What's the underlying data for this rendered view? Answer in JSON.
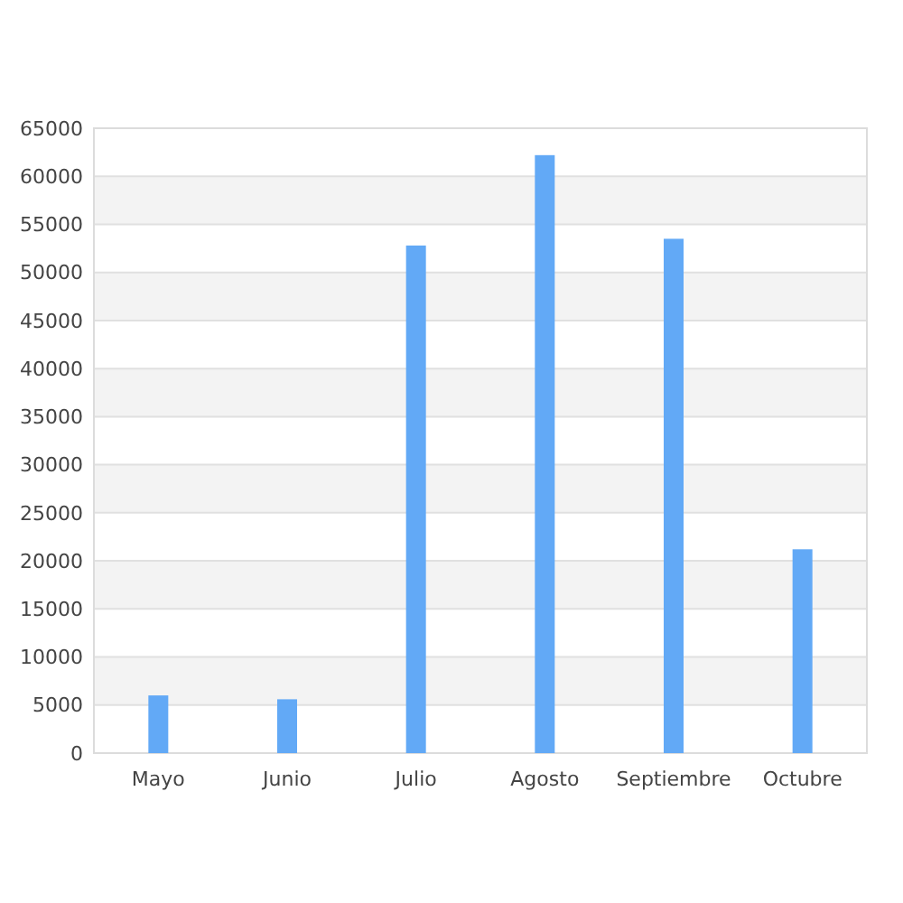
{
  "chart_data": {
    "type": "bar",
    "categories": [
      "Mayo",
      "Junio",
      "Julio",
      "Agosto",
      "Septiembre",
      "Octubre"
    ],
    "values": [
      6000,
      5600,
      52800,
      62200,
      53500,
      21200
    ],
    "color": "#62a9f6",
    "ylim": [
      0,
      65000
    ],
    "yticks": [
      0,
      5000,
      10000,
      15000,
      20000,
      25000,
      30000,
      35000,
      40000,
      45000,
      50000,
      55000,
      60000,
      65000
    ],
    "grid": "y"
  }
}
